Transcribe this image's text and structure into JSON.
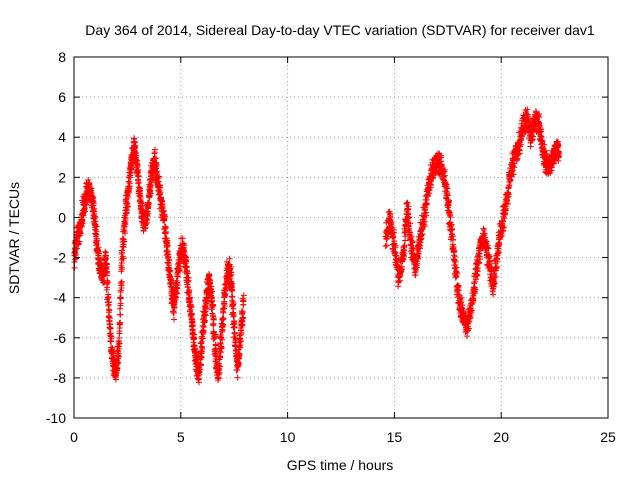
{
  "chart_data": {
    "type": "scatter",
    "title": "Day 364 of 2014, Sidereal Day-to-day VTEC variation (SDTVAR) for receiver dav1",
    "xlabel": "GPS time / hours",
    "ylabel": "SDTVAR / TECUs",
    "xlim": [
      0,
      25
    ],
    "ylim": [
      -10,
      8
    ],
    "xticks": [
      0,
      5,
      10,
      15,
      20,
      25
    ],
    "yticks": [
      -10,
      -8,
      -6,
      -4,
      -2,
      0,
      2,
      4,
      6,
      8
    ],
    "xtick_labels": [
      "0",
      "5",
      "10",
      "15",
      "20",
      "25"
    ],
    "ytick_labels": [
      "-10",
      "-8",
      "-6",
      "-4",
      "-2",
      "0",
      "2",
      "4",
      "6",
      "8"
    ],
    "grid": true,
    "marker": "+",
    "marker_color": "#ff0000",
    "trace_points": [
      [
        0.0,
        -2.0
      ],
      [
        0.15,
        -1.0
      ],
      [
        0.3,
        -0.5
      ],
      [
        0.45,
        0.5
      ],
      [
        0.6,
        1.2
      ],
      [
        0.75,
        1.5
      ],
      [
        0.9,
        0.5
      ],
      [
        1.05,
        -1.0
      ],
      [
        1.2,
        -2.5
      ],
      [
        1.35,
        -3.0
      ],
      [
        1.5,
        -2.0
      ],
      [
        1.65,
        -5.0
      ],
      [
        1.8,
        -7.0
      ],
      [
        1.95,
        -8.0
      ],
      [
        2.1,
        -6.5
      ],
      [
        2.25,
        -2.0
      ],
      [
        2.4,
        0.0
      ],
      [
        2.55,
        1.5
      ],
      [
        2.7,
        3.0
      ],
      [
        2.85,
        3.5
      ],
      [
        3.0,
        2.0
      ],
      [
        3.15,
        0.5
      ],
      [
        3.3,
        -0.5
      ],
      [
        3.45,
        0.5
      ],
      [
        3.6,
        2.0
      ],
      [
        3.75,
        3.0
      ],
      [
        3.9,
        2.0
      ],
      [
        4.05,
        1.0
      ],
      [
        4.2,
        0.0
      ],
      [
        4.35,
        -1.5
      ],
      [
        4.5,
        -3.0
      ],
      [
        4.65,
        -4.5
      ],
      [
        4.8,
        -3.5
      ],
      [
        4.95,
        -2.0
      ],
      [
        5.1,
        -1.5
      ],
      [
        5.25,
        -2.5
      ],
      [
        5.4,
        -4.0
      ],
      [
        5.55,
        -5.5
      ],
      [
        5.7,
        -7.0
      ],
      [
        5.85,
        -8.0
      ],
      [
        6.0,
        -6.0
      ],
      [
        6.15,
        -4.5
      ],
      [
        6.3,
        -3.0
      ],
      [
        6.45,
        -4.0
      ],
      [
        6.6,
        -6.5
      ],
      [
        6.75,
        -8.0
      ],
      [
        6.9,
        -6.0
      ],
      [
        7.05,
        -4.0
      ],
      [
        7.2,
        -2.5
      ],
      [
        7.35,
        -3.0
      ],
      [
        7.5,
        -5.5
      ],
      [
        7.65,
        -7.5
      ],
      [
        7.8,
        -6.0
      ],
      [
        7.95,
        -4.0
      ],
      [
        14.6,
        -1.0
      ],
      [
        14.8,
        0.0
      ],
      [
        15.0,
        -1.5
      ],
      [
        15.2,
        -3.0
      ],
      [
        15.4,
        -2.0
      ],
      [
        15.6,
        0.5
      ],
      [
        15.8,
        -1.5
      ],
      [
        16.0,
        -2.5
      ],
      [
        16.2,
        -1.0
      ],
      [
        16.4,
        0.0
      ],
      [
        16.6,
        1.5
      ],
      [
        16.8,
        2.5
      ],
      [
        17.0,
        2.8
      ],
      [
        17.2,
        2.5
      ],
      [
        17.4,
        1.5
      ],
      [
        17.6,
        0.0
      ],
      [
        17.8,
        -2.0
      ],
      [
        18.0,
        -4.0
      ],
      [
        18.2,
        -4.8
      ],
      [
        18.4,
        -5.5
      ],
      [
        18.6,
        -4.5
      ],
      [
        18.8,
        -3.0
      ],
      [
        19.0,
        -1.5
      ],
      [
        19.2,
        -1.0
      ],
      [
        19.4,
        -2.0
      ],
      [
        19.6,
        -3.5
      ],
      [
        19.8,
        -2.0
      ],
      [
        20.0,
        -0.5
      ],
      [
        20.2,
        0.5
      ],
      [
        20.4,
        2.0
      ],
      [
        20.6,
        3.0
      ],
      [
        20.8,
        3.5
      ],
      [
        21.0,
        4.5
      ],
      [
        21.2,
        5.0
      ],
      [
        21.4,
        4.0
      ],
      [
        21.6,
        5.0
      ],
      [
        21.8,
        4.5
      ],
      [
        22.0,
        3.0
      ],
      [
        22.2,
        2.5
      ],
      [
        22.4,
        3.0
      ],
      [
        22.6,
        3.5
      ],
      [
        22.7,
        3.2
      ]
    ]
  }
}
